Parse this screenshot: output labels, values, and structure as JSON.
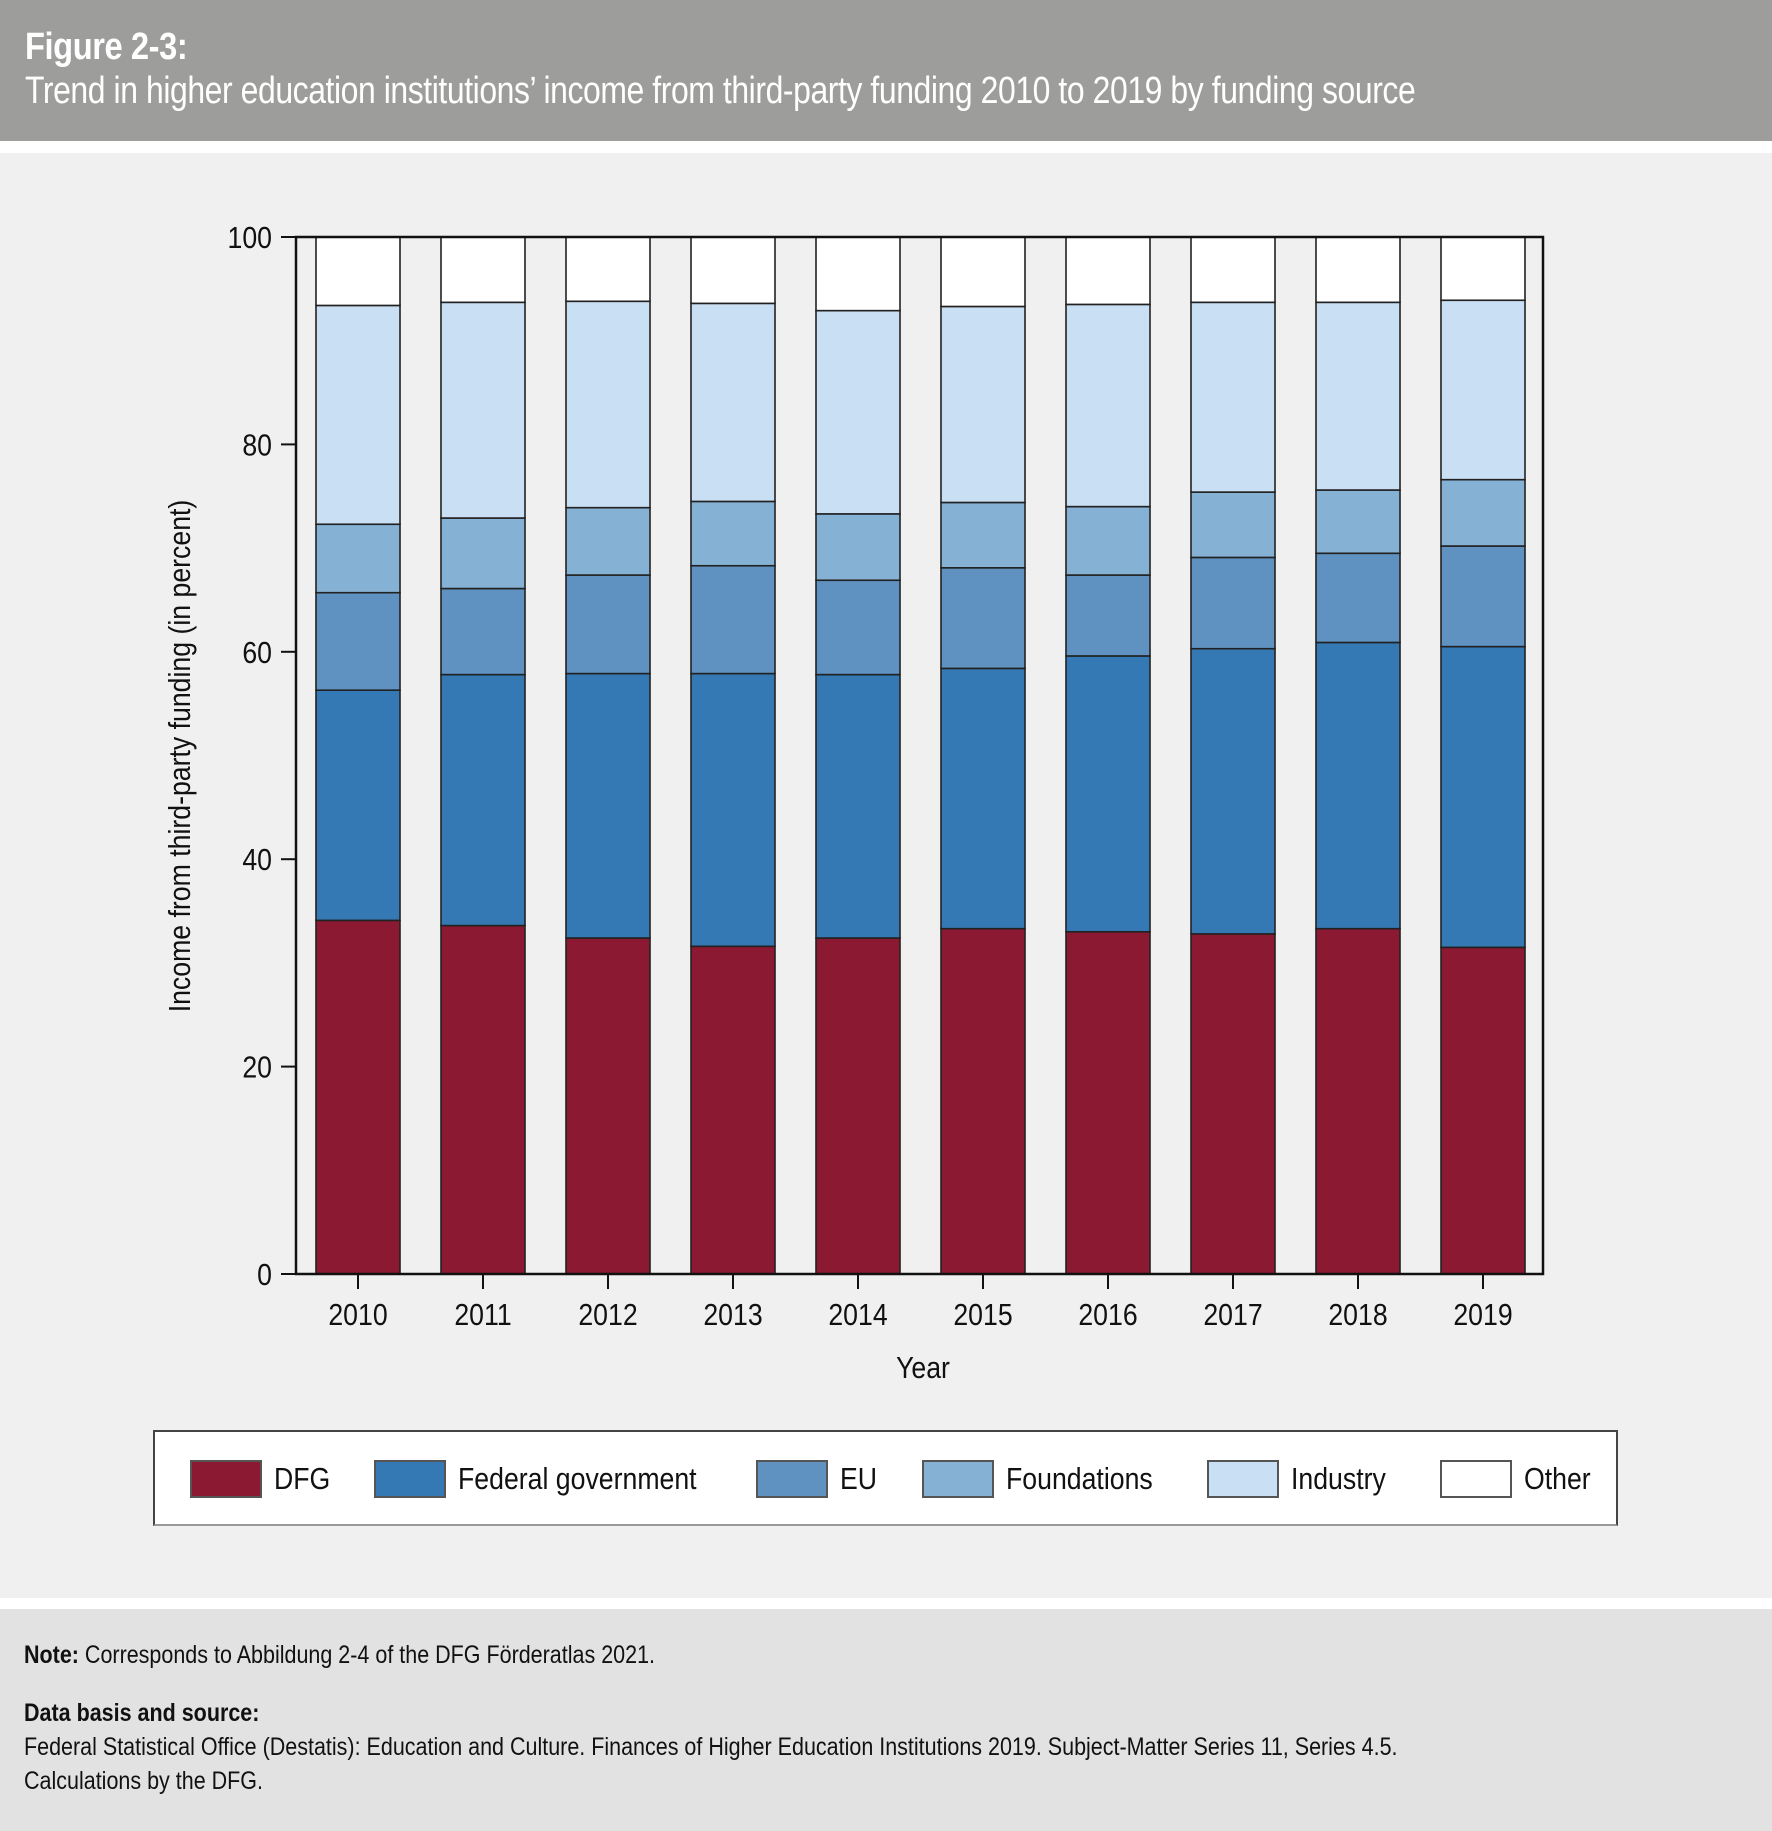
{
  "header": {
    "figure_label": "Figure 2-3:",
    "title": "Trend in higher education institutions’ income from third-party funding 2010 to 2019 by funding source"
  },
  "footer": {
    "note_label": "Note:",
    "note_text": " Corresponds to Abbildung 2-4 of the DFG Förderatlas 2021.",
    "source_label": "Data basis and source:",
    "source_line1": "Federal Statistical Office (Destatis): Education and Culture. Finances of Higher Education Institutions 2019. Subject-Matter Series 11, Series 4.5.",
    "source_line2": "Calculations by the DFG."
  },
  "chart_data": {
    "type": "bar",
    "stacked": true,
    "title": "Trend in higher education institutions’ income from third-party funding 2010 to 2019 by funding source",
    "xlabel": "Year",
    "ylabel": "Income from third-party funding (in percent)",
    "ylim": [
      0,
      100
    ],
    "yticks": [
      0,
      20,
      40,
      60,
      80,
      100
    ],
    "grid": false,
    "legend_position": "bottom",
    "categories": [
      "2010",
      "2011",
      "2012",
      "2013",
      "2014",
      "2015",
      "2016",
      "2017",
      "2018",
      "2019"
    ],
    "series": [
      {
        "name": "DFG",
        "color": "#8c1932",
        "values": [
          34.1,
          33.6,
          32.4,
          31.6,
          32.4,
          33.3,
          33.0,
          32.8,
          33.3,
          31.5
        ]
      },
      {
        "name": "Federal government",
        "color": "#3579b4",
        "values": [
          22.2,
          24.2,
          25.5,
          26.3,
          25.4,
          25.1,
          26.6,
          27.5,
          27.6,
          29.0
        ]
      },
      {
        "name": "EU",
        "color": "#5f92c1",
        "values": [
          9.4,
          8.3,
          9.5,
          10.4,
          9.1,
          9.7,
          7.8,
          8.8,
          8.6,
          9.7
        ]
      },
      {
        "name": "Foundations",
        "color": "#85b1d4",
        "values": [
          6.6,
          6.8,
          6.5,
          6.2,
          6.4,
          6.3,
          6.6,
          6.3,
          6.1,
          6.4
        ]
      },
      {
        "name": "Industry",
        "color": "#c9dff3",
        "values": [
          21.1,
          20.8,
          19.9,
          19.1,
          19.6,
          18.9,
          19.5,
          18.3,
          18.1,
          17.3
        ]
      },
      {
        "name": "Other",
        "color": "#ffffff",
        "values": [
          6.6,
          6.3,
          6.2,
          6.4,
          7.1,
          6.7,
          6.5,
          6.3,
          6.3,
          6.1
        ]
      }
    ]
  }
}
